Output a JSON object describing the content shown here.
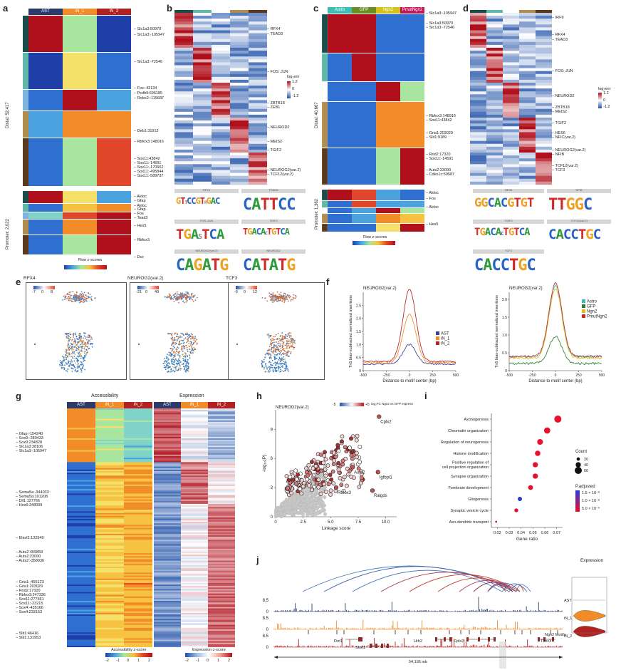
{
  "panel_a": {
    "label": "a",
    "columns": [
      {
        "name": "AST",
        "color": "#2b3a6b"
      },
      {
        "name": "iN_1",
        "color": "#f28c28"
      },
      {
        "name": "iN_2",
        "color": "#b22222"
      }
    ],
    "distal_label": "Distal: 52,417",
    "promoter_label": "Promoter: 2,022",
    "genes": [
      "Slc1a3:50970",
      "Slc1a3:-105947",
      "Slc1a3:-72546",
      "Fos:-43134",
      "Pcdh9:696185",
      "Robo2:-115687",
      "Deb1:31912",
      "Rbfox3:148916",
      "Sox11:43842",
      "Sox11:-14591",
      "Sox11:-170662",
      "Sox11:-495844",
      "Sox11:-589737",
      "Aldoc",
      "Gfap",
      "Aldoc",
      "Gfap",
      "Fos",
      "Tead3",
      "Hes5",
      "Rbfox3",
      "Dcx"
    ],
    "legend_title": "Row z-scores"
  },
  "panel_b": {
    "label": "b",
    "tfs": [
      "RFX4",
      "TEAD3",
      "FOS::JUN",
      "ZBTB18",
      "ZEB1",
      "NEUROD2",
      "MEIS2",
      "TGIF2",
      "NEUROG2(var.2)",
      "TCF12(var.2)"
    ],
    "legend_title": "log₂enr",
    "legend_ticks": [
      "1.2",
      "0",
      "-1.2"
    ],
    "logo_titles": [
      "RFX4",
      "TEAD3",
      "FOS::JUN",
      "TGIF2",
      "NEUROG2(var.2)",
      "NEUROD2"
    ],
    "logo_seqs": [
      "GTtCCGTrGAC",
      "CATTCC",
      "TGAsTCA",
      "TGACAcTGTCA",
      "CAGATG",
      "CATATG"
    ]
  },
  "panel_c": {
    "label": "c",
    "columns": [
      {
        "name": "Astro",
        "color": "#3bbfb3"
      },
      {
        "name": "GFP",
        "color": "#6b8e23"
      },
      {
        "name": "Ngn2",
        "color": "#d4c21a"
      },
      {
        "name": "PmutNgn2",
        "color": "#c2185b"
      }
    ],
    "distal_label": "Distal: 40,667",
    "promoter_label": "Promoter: 1,362",
    "genes": [
      "Slc1a3:-105947",
      "Slc1a3:50970",
      "Slc1a3:-72546",
      "Rbfox3:148916",
      "Sox11:43842",
      "Gria1:203029",
      "Slit1:9189",
      "Rnd2:17320",
      "Sox11:-14591",
      "Auts2:23090",
      "Cdkn1c:59587",
      "Aldoc",
      "Fos",
      "Aldoc",
      "Hes5"
    ],
    "legend_title": "Row z-scores"
  },
  "panel_d": {
    "label": "d",
    "tfs": [
      "IRF9",
      "RFX4",
      "TEAD3",
      "FOS::JUN",
      "NEUROD2",
      "ZBTB18",
      "MEIS2",
      "TGIF2",
      "HES6",
      "NFIC(var.2)",
      "NEUROG2(var.2)",
      "NFIB",
      "TCF12(var.2)",
      "TCF3"
    ],
    "legend_title": "log₂enr",
    "legend_ticks": [
      "1.2",
      "0",
      "-1.2"
    ],
    "logo_titles": [
      "HES6",
      "NFIB",
      "TGIF2",
      "TCF12(var.2)",
      "TCF3"
    ],
    "logo_seqs": [
      "GGCACGTGT",
      "TTGGC",
      "TGACAcTGTCA",
      "CACCTGC",
      "CACCTGC"
    ]
  },
  "panel_e": {
    "label": "e",
    "plots": [
      {
        "title": "RFX4",
        "ticks": [
          "-7",
          "0",
          "8"
        ]
      },
      {
        "title": "NEUROG2(var.2)",
        "ticks": [
          "-21",
          "0",
          "40"
        ]
      },
      {
        "title": "TCF3",
        "ticks": [
          "-6",
          "0",
          "12"
        ]
      }
    ]
  },
  "panel_f": {
    "label": "f",
    "ylabel": "Tn5 bias-subtracted normalized insertions",
    "xlabel": "Distance to motif center (bp)",
    "chart_data": [
      {
        "type": "line",
        "title": "NEUROG2(var.2)",
        "x": [
          -500,
          -250,
          0,
          250,
          500
        ],
        "xticks": [
          "-500",
          "-250",
          "0",
          "250",
          "500"
        ],
        "yticks": [
          "0",
          "0.5",
          "1.0",
          "1.5",
          "2.0",
          "2.5"
        ],
        "ylim": [
          0,
          3.0
        ],
        "series": [
          {
            "name": "AST",
            "color": "#3c3f8f",
            "peak": 0.75,
            "base": 0.25
          },
          {
            "name": "iN_1",
            "color": "#f28c28",
            "peak": 1.85,
            "base": 0.3
          },
          {
            "name": "iN_2",
            "color": "#b22222",
            "peak": 2.75,
            "base": 0.35
          }
        ]
      },
      {
        "type": "line",
        "title": "NEUROG2(var.2)",
        "x": [
          -500,
          -250,
          0,
          250,
          500
        ],
        "xticks": [
          "-500",
          "-250",
          "0",
          "250",
          "500"
        ],
        "yticks": [
          "0",
          "0.5",
          "1.0",
          "1.5",
          "2.0"
        ],
        "ylim": [
          0,
          2.2
        ],
        "series": [
          {
            "name": "Astro",
            "color": "#3bbfb3",
            "peak": 2.0,
            "base": 0.4
          },
          {
            "name": "GFP",
            "color": "#2e7d32",
            "peak": 0.75,
            "base": 0.2
          },
          {
            "name": "Ngn2",
            "color": "#d4c21a",
            "peak": 1.95,
            "base": 0.35
          },
          {
            "name": "PmutNgn2",
            "color": "#c62828",
            "peak": 2.05,
            "base": 0.4
          }
        ]
      }
    ]
  },
  "panel_g": {
    "label": "g",
    "titles": [
      "Accessibility",
      "Expression"
    ],
    "columns": [
      {
        "name": "AST",
        "color": "#2b3a6b"
      },
      {
        "name": "iN_1",
        "color": "#f28c28"
      },
      {
        "name": "iN_2",
        "color": "#b22222"
      }
    ],
    "genes": [
      "Gfap:-154240",
      "Sox9:-280433",
      "Sox9:234828",
      "Slc1a3:38106",
      "Slc1a3:-105947",
      "Sema5a:-344033",
      "Sema5a:101208",
      "Dll1:127766",
      "Hes6:348009",
      "Elavl2:132949",
      "Auts2:409859",
      "Auts2:23090",
      "Auts2:-358036",
      "Gria1:-455123",
      "Gria1:203029",
      "Rnd2:17320",
      "Rbfox3:247336",
      "Sox11:277561",
      "Sox11:-23215",
      "Sox4:-435166",
      "Sox4:233153",
      "Slit1:46416",
      "Slit1:131953"
    ],
    "legend1": "Accessibility z-score",
    "legend2": "Expression z-score",
    "ticks": [
      "-2",
      "-1",
      "0",
      "1",
      "2"
    ]
  },
  "panel_h": {
    "label": "h",
    "title": "NEUROG2(var.2)",
    "legend": "log₂FC Ngn2 vs GFP expression",
    "legend_ticks": [
      "-5",
      "+5"
    ],
    "xlabel": "Linkage score",
    "ylabel": "-log₁₀(P)",
    "chart_data": {
      "type": "scatter",
      "xticks": [
        "0",
        "2.5",
        "5.0",
        "7.5",
        "10.0"
      ],
      "yticks": [
        "0",
        "3",
        "6",
        "9"
      ],
      "xlim": [
        0,
        11
      ],
      "ylim": [
        0,
        11
      ],
      "annotations": [
        {
          "text": "Cplx2",
          "x": 9.4,
          "y": 10.3
        },
        {
          "text": "Igfbpl1",
          "x": 9.3,
          "y": 4.6
        },
        {
          "text": "Auts2",
          "x": 7.0,
          "y": 5.1
        },
        {
          "text": "Rbfox3",
          "x": 5.5,
          "y": 3.0
        },
        {
          "text": "Ralgds",
          "x": 8.8,
          "y": 2.7
        }
      ]
    }
  },
  "panel_i": {
    "label": "i",
    "xlabel": "Gene ratio",
    "chart_data": {
      "type": "scatter",
      "xticks": [
        "0.02",
        "0.03",
        "0.04",
        "0.05",
        "0.06",
        "0.07"
      ],
      "xlim": [
        0.015,
        0.075
      ],
      "terms": [
        {
          "name": "Axonogenesis",
          "ratio": 0.071,
          "count": 60,
          "p": "low"
        },
        {
          "name": "Chromatin organization",
          "ratio": 0.062,
          "count": 50,
          "p": "low"
        },
        {
          "name": "Regulation of neurogenesis",
          "ratio": 0.056,
          "count": 45,
          "p": "low"
        },
        {
          "name": "Histone modification",
          "ratio": 0.054,
          "count": 42,
          "p": "low"
        },
        {
          "name": "Positive regulation of cell projection organization",
          "ratio": 0.052,
          "count": 40,
          "p": "low"
        },
        {
          "name": "Synapse organization",
          "ratio": 0.052,
          "count": 40,
          "p": "low"
        },
        {
          "name": "Forebrain development",
          "ratio": 0.048,
          "count": 36,
          "p": "low"
        },
        {
          "name": "Gliogenesis",
          "ratio": 0.039,
          "count": 30,
          "p": "high"
        },
        {
          "name": "Synaptic vesicle cycle",
          "ratio": 0.036,
          "count": 26,
          "p": "low"
        },
        {
          "name": "Axo-dendritic transport",
          "ratio": 0.019,
          "count": 6,
          "p": "low"
        }
      ],
      "count_title": "Count",
      "count_ticks": [
        "20",
        "40",
        "60"
      ],
      "p_title": "P.adjusted",
      "p_ticks": [
        "1.5 × 10⁻⁸",
        "1.0 × 10⁻⁸",
        "5.0 × 10⁻⁹"
      ]
    }
  },
  "panel_j": {
    "label": "j",
    "tracks": [
      {
        "name": "AST",
        "color": "#2b3a6b",
        "max": "8.5"
      },
      {
        "name": "iN_1",
        "color": "#f28c28",
        "max": "8.5"
      },
      {
        "name": "iN_2",
        "color": "#b22222",
        "max": "8.5"
      }
    ],
    "genes": [
      "Drd1",
      "Sfxn1",
      "Hrh2",
      "Cplx2",
      "Thoc3"
    ],
    "motifs_label": "Ngn2 Motifs",
    "scale": "54,195 mb",
    "expression_title": "Expression"
  }
}
